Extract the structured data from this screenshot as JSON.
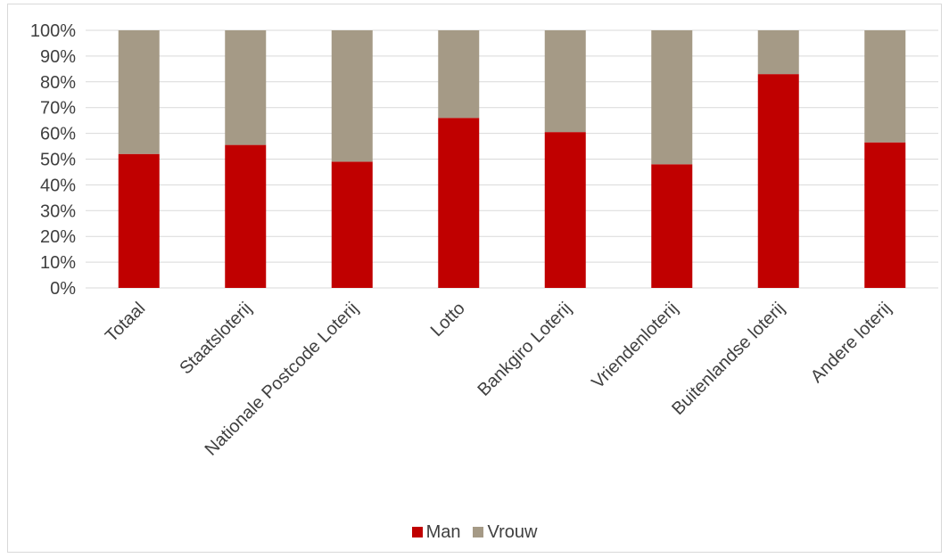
{
  "colors": {
    "man": "#c00000",
    "vrouw": "#a59a86",
    "grid": "#d9d9d9",
    "text": "#404040"
  },
  "chart_data": {
    "type": "bar",
    "stacked": true,
    "percent": true,
    "title": "",
    "xlabel": "",
    "ylabel": "",
    "ylim": [
      0,
      100
    ],
    "y_ticks": [
      "0%",
      "10%",
      "20%",
      "30%",
      "40%",
      "50%",
      "60%",
      "70%",
      "80%",
      "90%",
      "100%"
    ],
    "grid": true,
    "legend_position": "bottom",
    "categories": [
      "Totaal",
      "Staatsloterij",
      "Nationale Postcode Loterij",
      "Lotto",
      "Bankgiro Loterij",
      "Vriendenloterij",
      "Buitenlandse loterij",
      "Andere loterij"
    ],
    "series": [
      {
        "name": "Man",
        "color": "#c00000",
        "values": [
          52,
          55.5,
          49,
          66,
          60.5,
          48,
          83,
          56.5
        ]
      },
      {
        "name": "Vrouw",
        "color": "#a59a86",
        "values": [
          48,
          44.5,
          51,
          34,
          39.5,
          52,
          17,
          43.5
        ]
      }
    ]
  }
}
